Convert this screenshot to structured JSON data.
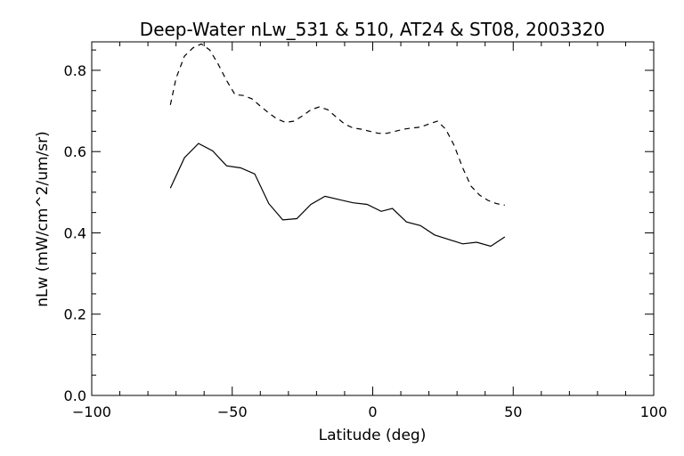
{
  "chart_data": {
    "type": "line",
    "title": "Deep-Water nLw_531 & 510, AT24 & ST08, 2003320",
    "xlabel": "Latitude (deg)",
    "ylabel": "nLw (mW/cm^2/um/sr)",
    "xlim": [
      -100,
      100
    ],
    "ylim": [
      0.0,
      0.87
    ],
    "xticks": [
      -100,
      -50,
      0,
      50,
      100
    ],
    "xtick_labels": [
      "−100",
      "−50",
      "0",
      "50",
      "100"
    ],
    "yticks": [
      0.0,
      0.2,
      0.4,
      0.6,
      0.8
    ],
    "ytick_labels": [
      "0.0",
      "0.2",
      "0.4",
      "0.6",
      "0.8"
    ],
    "grid": false,
    "series": [
      {
        "style": "dashed",
        "color": "#000000",
        "x": [
          -72,
          -70,
          -67,
          -64,
          -61,
          -58,
          -55,
          -52,
          -49,
          -46,
          -43,
          -40,
          -37,
          -34,
          -31,
          -28,
          -25,
          -22,
          -19,
          -16,
          -13,
          -10,
          -7,
          -4,
          -1,
          2,
          5,
          8,
          11,
          14,
          17,
          20,
          23,
          26,
          29,
          32,
          35,
          38,
          41,
          44,
          47
        ],
        "y": [
          0.715,
          0.78,
          0.835,
          0.855,
          0.865,
          0.85,
          0.815,
          0.775,
          0.74,
          0.738,
          0.73,
          0.712,
          0.695,
          0.68,
          0.672,
          0.675,
          0.688,
          0.703,
          0.71,
          0.703,
          0.685,
          0.668,
          0.658,
          0.655,
          0.65,
          0.645,
          0.645,
          0.65,
          0.655,
          0.658,
          0.66,
          0.668,
          0.675,
          0.655,
          0.615,
          0.56,
          0.515,
          0.493,
          0.48,
          0.472,
          0.468
        ]
      },
      {
        "style": "solid",
        "color": "#000000",
        "x": [
          -72,
          -67,
          -62,
          -57,
          -52,
          -47,
          -42,
          -37,
          -32,
          -27,
          -22,
          -17,
          -12,
          -7,
          -2,
          3,
          7,
          12,
          17,
          22,
          27,
          32,
          37,
          42,
          47
        ],
        "y": [
          0.51,
          0.585,
          0.62,
          0.602,
          0.565,
          0.56,
          0.545,
          0.472,
          0.432,
          0.435,
          0.47,
          0.49,
          0.482,
          0.474,
          0.47,
          0.453,
          0.46,
          0.427,
          0.418,
          0.395,
          0.384,
          0.373,
          0.377,
          0.367,
          0.39
        ]
      }
    ]
  }
}
